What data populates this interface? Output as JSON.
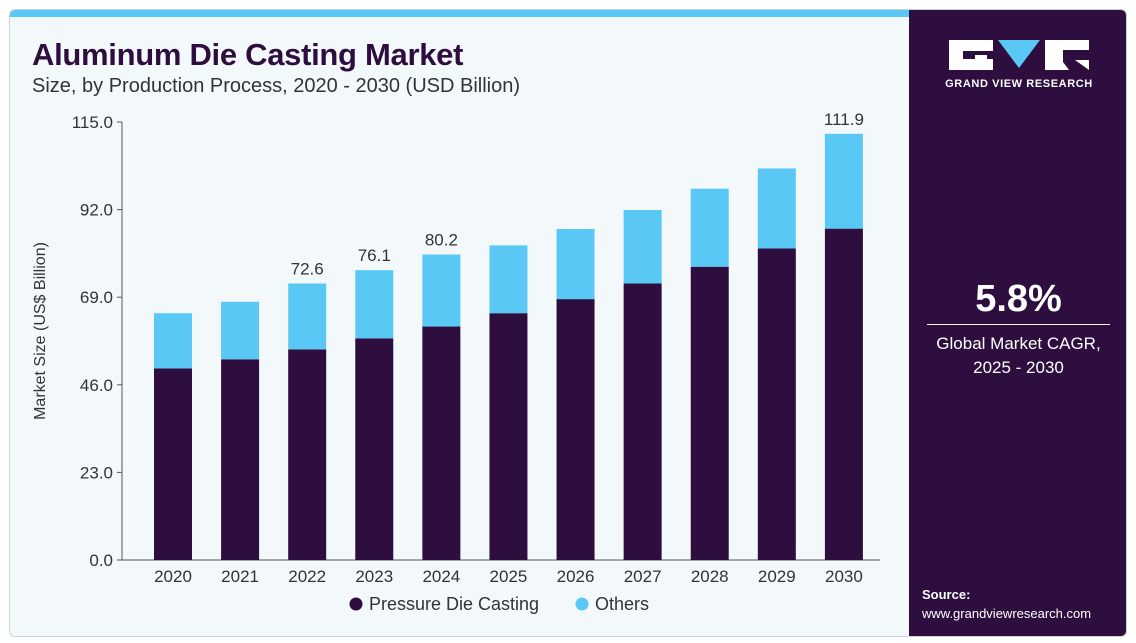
{
  "title": "Aluminum Die Casting Market",
  "subtitle": "Size, by Production Process, 2020 - 2030 (USD Billion)",
  "colors": {
    "pressure": "#2e0e3f",
    "others": "#5ac8f5",
    "panel": "#2e0e3f"
  },
  "chart_data": {
    "type": "bar",
    "stacked": true,
    "ylabel": "Market Size (US$ Billion)",
    "ylim": [
      0,
      115
    ],
    "yticks": [
      "0.0",
      "23.0",
      "46.0",
      "69.0",
      "92.0",
      "115.0"
    ],
    "categories": [
      "2020",
      "2021",
      "2022",
      "2023",
      "2024",
      "2025",
      "2026",
      "2027",
      "2028",
      "2029",
      "2030"
    ],
    "series": [
      {
        "name": "Pressure Die Casting",
        "color": "#2e0e3f",
        "values": [
          50.3,
          52.7,
          55.3,
          58.2,
          61.3,
          64.8,
          68.5,
          72.6,
          77.0,
          81.8,
          87.0
        ]
      },
      {
        "name": "Others",
        "color": "#5ac8f5",
        "values": [
          14.5,
          15.1,
          17.3,
          17.9,
          18.9,
          17.8,
          18.4,
          19.3,
          20.5,
          21.0,
          24.9
        ]
      }
    ],
    "total_labels": [
      "",
      "",
      "72.6",
      "76.1",
      "80.2",
      "",
      "",
      "",
      "",
      "",
      "111.9"
    ],
    "legend_position": "bottom",
    "grid": false
  },
  "side": {
    "logo_text": "GRAND VIEW RESEARCH",
    "cagr_value": "5.8%",
    "cagr_label_line1": "Global Market CAGR,",
    "cagr_label_line2": "2025 - 2030",
    "source_title": "Source:",
    "source_url": "www.grandviewresearch.com"
  }
}
